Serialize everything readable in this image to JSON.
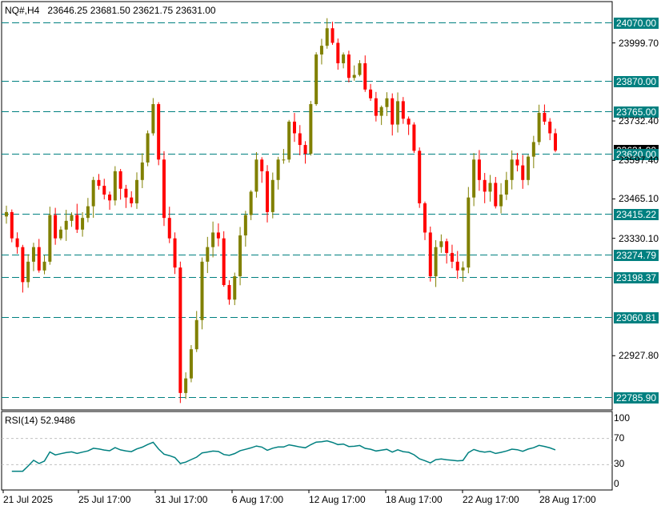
{
  "header": {
    "symbol": "NQ#,H4",
    "ohlc": "23646.25 23681.50 23621.75 23631.00"
  },
  "indicator": {
    "label": "RSI(14) 52.9486",
    "levels": [
      30,
      70
    ],
    "scale": [
      "100",
      "70",
      "30",
      "0"
    ]
  },
  "price_axis": {
    "ticks": [
      "23999.70",
      "23732.40",
      "23597.40",
      "23465.10",
      "23330.10",
      "22927.80"
    ],
    "current_price": "23631.00"
  },
  "horizontal_lines": [
    {
      "label": "24070.00",
      "value": 24070.0
    },
    {
      "label": "23870.00",
      "value": 23870.0
    },
    {
      "label": "23765.00",
      "value": 23765.0
    },
    {
      "label": "23620.00",
      "value": 23620.0
    },
    {
      "label": "23415.22",
      "value": 23415.22
    },
    {
      "label": "23274.79",
      "value": 23274.79
    },
    {
      "label": "23198.37",
      "value": 23198.37
    },
    {
      "label": "23060.81",
      "value": 23060.81
    },
    {
      "label": "22785.90",
      "value": 22785.9
    }
  ],
  "time_axis": [
    "21 Jul 2025",
    "25 Jul 17:00",
    "31 Jul 17:00",
    "6 Aug 17:00",
    "12 Aug 17:00",
    "18 Aug 17:00",
    "22 Aug 17:00",
    "28 Aug 17:00"
  ],
  "colors": {
    "bull": "#808000",
    "bear": "#ff0000",
    "level_line": "#008080",
    "rsi_line": "#008080",
    "grid": "#c0c0c0"
  },
  "price_path": [
    23420,
    23330,
    23300,
    23180,
    23250,
    23300,
    23220,
    23250,
    23410,
    23330,
    23360,
    23390,
    23410,
    23360,
    23400,
    23440,
    23530,
    23510,
    23480,
    23460,
    23560,
    23500,
    23470,
    23450,
    23530,
    23590,
    23690,
    23790,
    23600,
    23400,
    23330,
    23230,
    22800,
    22850,
    22950,
    23050,
    23250,
    23300,
    23350,
    23330,
    23170,
    23120,
    23200,
    23340,
    23410,
    23490,
    23600,
    23560,
    23420,
    23530,
    23600,
    23600,
    23730,
    23690,
    23650,
    23620,
    23790,
    23960,
    23990,
    24050,
    24000,
    23930,
    23960,
    23880,
    23890,
    23930,
    23840,
    23810,
    23750,
    23780,
    23810,
    23720,
    23800,
    23740,
    23720,
    23630,
    23450,
    23350,
    23200,
    23300,
    23320,
    23280,
    23250,
    23220,
    23230,
    23470,
    23600,
    23530,
    23490,
    23520,
    23440,
    23480,
    23530,
    23600,
    23580,
    23530,
    23610,
    23660,
    23760,
    23730,
    23690,
    23631
  ]
}
